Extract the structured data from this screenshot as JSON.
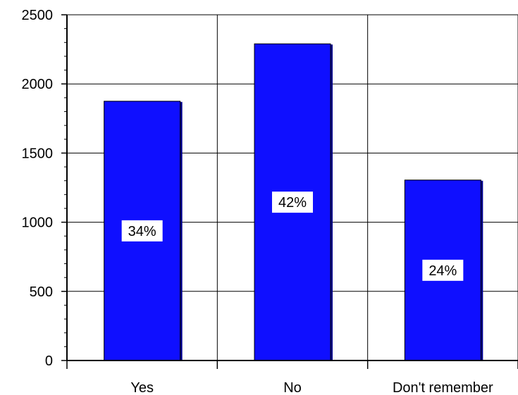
{
  "chart_data": {
    "type": "bar",
    "categories": [
      "Yes",
      "No",
      "Don't remember"
    ],
    "values": [
      1875,
      2290,
      1305
    ],
    "data_labels": [
      "34%",
      "42%",
      "24%"
    ],
    "title": "",
    "xlabel": "",
    "ylabel": "",
    "ylim": [
      0,
      2500
    ],
    "yticks": [
      0,
      500,
      1000,
      1500,
      2000,
      2500
    ],
    "ytick_labels": [
      "0",
      "500",
      "1000",
      "1500",
      "2000",
      "2500"
    ],
    "grid": true,
    "legend": "none",
    "bar_color": "#0f0fff",
    "bar_shadow_color": "#00008a"
  }
}
